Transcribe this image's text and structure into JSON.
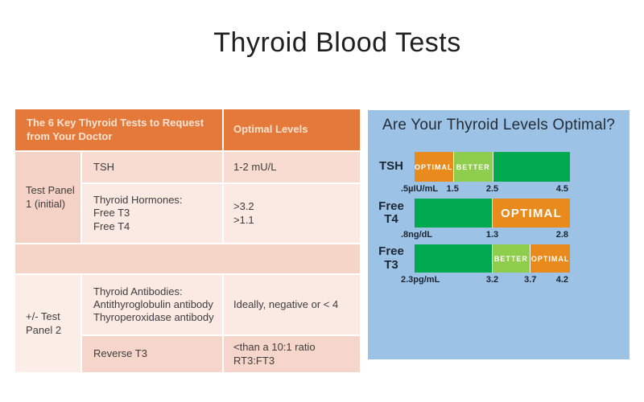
{
  "title": "Thyroid Blood Tests",
  "colors": {
    "header_orange": "#E5793A",
    "orange": "#E98A1D",
    "green_dark": "#00A94E",
    "green_light": "#8FCE4D",
    "panel_blue": "#9CC2E5",
    "pink_dark": "#F5D2C6",
    "pink_mid": "#F8DCD1",
    "pink_light": "#FBEAE3"
  },
  "table": {
    "header": {
      "col1": "The 6 Key Thyroid Tests to Request from Your Doctor",
      "col2": "Optimal Levels"
    },
    "panel1_label": "Test Panel\n1 (initial)",
    "panel2_label": "+/- Test\nPanel 2",
    "rows": {
      "tsh": {
        "test": "TSH",
        "optimal": "1-2 mU/L"
      },
      "hormones": {
        "test": "Thyroid Hormones:\nFree T3\nFree T4",
        "optimal": ">3.2\n>1.1"
      },
      "antibodies": {
        "test": "Thyroid Antibodies:\nAntithyroglobulin antibody\nThyroperoxidase antibody",
        "optimal": "Ideally, negative or < 4"
      },
      "reverse_t3": {
        "test": "Reverse T3",
        "optimal": "<than a 10:1 ratio\nRT3:FT3"
      }
    }
  },
  "chart_data": {
    "type": "bar",
    "title": "Are Your Thyroid Levels Optimal?",
    "legend_note": "orange = OPTIMAL, light green = BETTER, dark green = remainder of range",
    "rows": [
      {
        "label": "TSH",
        "unit": "µIU/mL",
        "range": [
          0.5,
          4.5
        ],
        "segments": [
          {
            "name": "OPTIMAL",
            "from": 0.5,
            "to": 1.5,
            "color": "orange",
            "width_pct": 24.5
          },
          {
            "name": "BETTER",
            "from": 1.5,
            "to": 2.5,
            "color": "green_light",
            "width_pct": 25.5
          },
          {
            "name": "",
            "from": 2.5,
            "to": 4.5,
            "color": "green_dark",
            "width_pct": 50
          }
        ],
        "ticks": [
          {
            "text": ".5µIU/mL",
            "pct": 0,
            "align": "left"
          },
          {
            "text": "1.5",
            "pct": 24.5,
            "align": "center"
          },
          {
            "text": "2.5",
            "pct": 50,
            "align": "center"
          },
          {
            "text": "4.5",
            "pct": 100,
            "align": "right"
          }
        ]
      },
      {
        "label": "Free\nT4",
        "unit": "ng/dL",
        "range": [
          0.8,
          2.8
        ],
        "segments": [
          {
            "name": "",
            "from": 0.8,
            "to": 1.3,
            "color": "green_dark",
            "width_pct": 50
          },
          {
            "name": "OPTIMAL",
            "from": 1.3,
            "to": 2.8,
            "color": "orange",
            "width_pct": 50
          }
        ],
        "ticks": [
          {
            "text": ".8ng/dL",
            "pct": 0,
            "align": "left"
          },
          {
            "text": "1.3",
            "pct": 50,
            "align": "center"
          },
          {
            "text": "2.8",
            "pct": 100,
            "align": "right"
          }
        ]
      },
      {
        "label": "Free\nT3",
        "unit": "pg/mL",
        "range": [
          2.3,
          4.2
        ],
        "segments": [
          {
            "name": "",
            "from": 2.3,
            "to": 3.2,
            "color": "green_dark",
            "width_pct": 50
          },
          {
            "name": "BETTER",
            "from": 3.2,
            "to": 3.7,
            "color": "green_light",
            "width_pct": 24.5
          },
          {
            "name": "OPTIMAL",
            "from": 3.7,
            "to": 4.2,
            "color": "orange",
            "width_pct": 25.5
          }
        ],
        "ticks": [
          {
            "text": "2.3pg/mL",
            "pct": 0,
            "align": "left"
          },
          {
            "text": "3.2",
            "pct": 50,
            "align": "center"
          },
          {
            "text": "3.7",
            "pct": 74.5,
            "align": "center"
          },
          {
            "text": "4.2",
            "pct": 100,
            "align": "right"
          }
        ]
      }
    ]
  }
}
